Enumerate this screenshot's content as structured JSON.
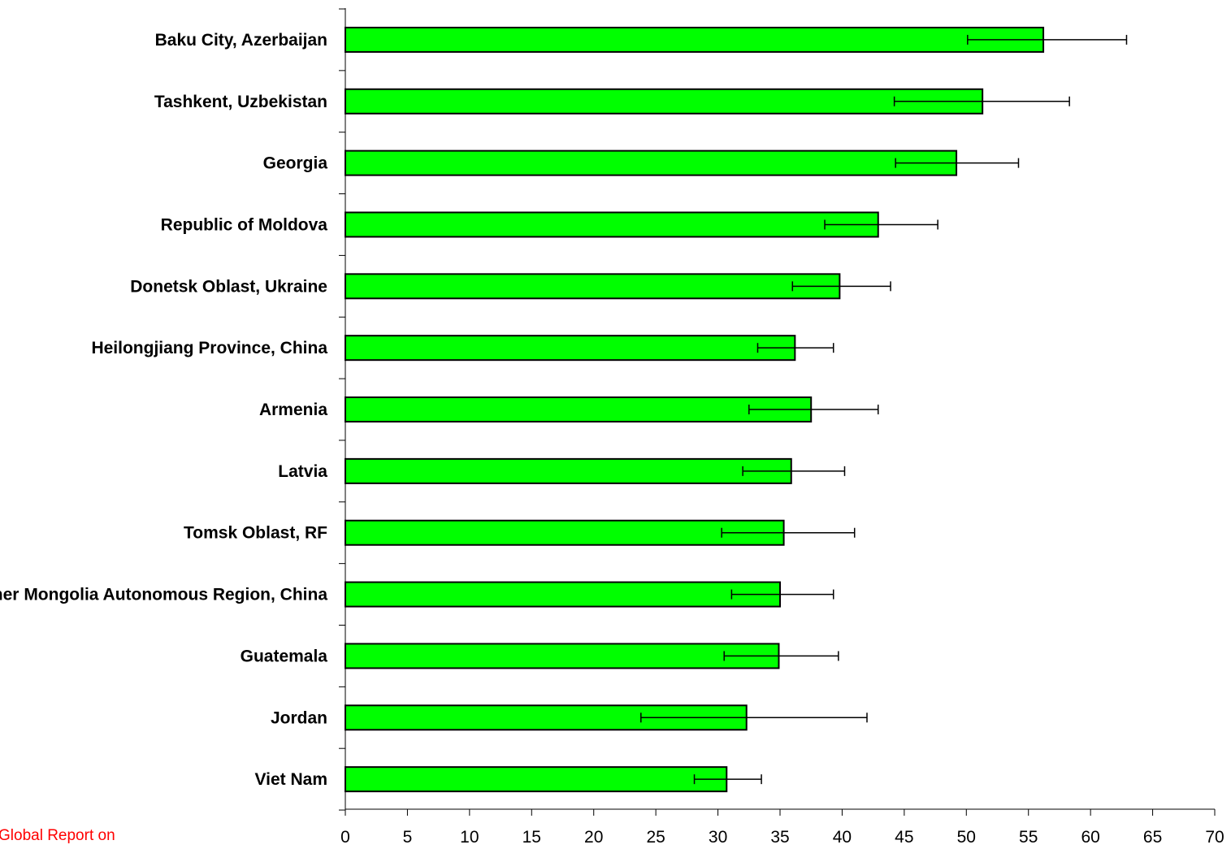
{
  "footer_note": "Global Report on",
  "colors": {
    "bar_fill": "#00ff00",
    "bar_stroke": "#000000",
    "axis": "#000000",
    "footer_text": "#ff0000"
  },
  "chart_data": {
    "type": "bar",
    "orientation": "horizontal",
    "title": "",
    "xlabel": "",
    "ylabel": "",
    "xlim": [
      0,
      70
    ],
    "x_ticks": [
      0,
      5,
      10,
      15,
      20,
      25,
      30,
      35,
      40,
      45,
      50,
      55,
      60,
      65,
      70
    ],
    "grid": false,
    "legend": "none",
    "categories": [
      "Baku City, Azerbaijan",
      "Tashkent, Uzbekistan",
      "Georgia",
      "Republic of Moldova",
      "Donetsk Oblast, Ukraine",
      "Heilongjiang Province, China",
      "Armenia",
      "Latvia",
      "Tomsk Oblast, RF",
      "Inner Mongolia Autonomous Region, China",
      "Guatemala",
      "Jordan",
      "Viet Nam"
    ],
    "values": [
      56.2,
      51.3,
      49.2,
      42.9,
      39.8,
      36.2,
      37.5,
      35.9,
      35.3,
      35.0,
      34.9,
      32.3,
      30.7
    ],
    "error_low": [
      50.1,
      44.2,
      44.3,
      38.6,
      36.0,
      33.2,
      32.5,
      32.0,
      30.3,
      31.1,
      30.5,
      23.8,
      28.1
    ],
    "error_high": [
      62.9,
      58.3,
      54.2,
      47.7,
      43.9,
      39.3,
      42.9,
      40.2,
      41.0,
      39.3,
      39.7,
      42.0,
      33.5
    ]
  }
}
